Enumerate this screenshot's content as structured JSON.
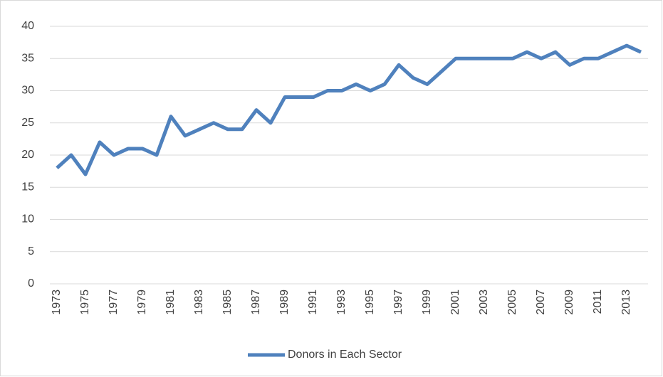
{
  "chart_data": {
    "type": "line",
    "categories": [
      "1973",
      null,
      "1975",
      null,
      "1977",
      null,
      "1979",
      null,
      "1981",
      null,
      "1983",
      null,
      "1985",
      null,
      "1987",
      null,
      "1989",
      null,
      "1991",
      null,
      "1993",
      null,
      "1995",
      null,
      "1997",
      null,
      "1999",
      null,
      "2001",
      null,
      "2003",
      null,
      "2005",
      null,
      "2007",
      null,
      "2009",
      null,
      "2011",
      null,
      "2013",
      null
    ],
    "series": [
      {
        "name": "Donors in Each Sector",
        "color": "#4f81bd",
        "values": [
          18,
          20,
          17,
          22,
          20,
          21,
          21,
          20,
          26,
          23,
          24,
          25,
          24,
          24,
          27,
          25,
          29,
          29,
          29,
          30,
          30,
          31,
          30,
          31,
          34,
          32,
          31,
          33,
          35,
          35,
          35,
          35,
          35,
          36,
          35,
          36,
          34,
          35,
          35,
          36,
          37,
          36
        ]
      }
    ],
    "ylim": [
      0,
      40
    ],
    "yticks": [
      0,
      5,
      10,
      15,
      20,
      25,
      30,
      35,
      40
    ],
    "grid": true,
    "legend": "bottom"
  }
}
